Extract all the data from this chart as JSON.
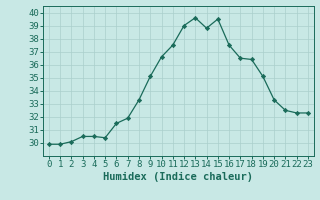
{
  "x": [
    0,
    1,
    2,
    3,
    4,
    5,
    6,
    7,
    8,
    9,
    10,
    11,
    12,
    13,
    14,
    15,
    16,
    17,
    18,
    19,
    20,
    21,
    22,
    23
  ],
  "y": [
    29.9,
    29.9,
    30.1,
    30.5,
    30.5,
    30.4,
    31.5,
    31.9,
    33.3,
    35.1,
    36.6,
    37.5,
    39.0,
    39.6,
    38.8,
    39.5,
    37.5,
    36.5,
    36.4,
    35.1,
    33.3,
    32.5,
    32.3,
    32.3
  ],
  "line_color": "#1a6b5a",
  "marker": "D",
  "marker_size": 2.2,
  "bg_color": "#c8e8e5",
  "grid_color": "#aacfcc",
  "tick_color": "#1a6b5a",
  "xlabel": "Humidex (Indice chaleur)",
  "xlim": [
    -0.5,
    23.5
  ],
  "ylim": [
    29.0,
    40.5
  ],
  "yticks": [
    30,
    31,
    32,
    33,
    34,
    35,
    36,
    37,
    38,
    39,
    40
  ],
  "xticks": [
    0,
    1,
    2,
    3,
    4,
    5,
    6,
    7,
    8,
    9,
    10,
    11,
    12,
    13,
    14,
    15,
    16,
    17,
    18,
    19,
    20,
    21,
    22,
    23
  ],
  "label_fontsize": 7.5,
  "tick_fontsize": 6.5
}
